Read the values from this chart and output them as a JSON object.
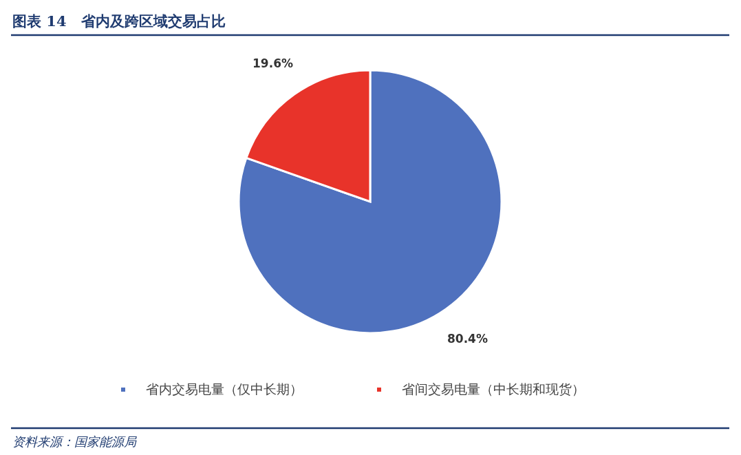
{
  "chart_data": {
    "type": "pie",
    "title": "图表 14　省内及跨区域交易占比",
    "categories": [
      "省内交易电量（仅中长期）",
      "省间交易电量（中长期和现货）"
    ],
    "values": [
      80.4,
      19.6
    ],
    "colors": [
      "#4f71be",
      "#e8332a"
    ],
    "value_labels": [
      "80.4%",
      "19.6%"
    ],
    "legend": "bottom",
    "annotations": [
      "资料来源：国家能源局"
    ]
  }
}
